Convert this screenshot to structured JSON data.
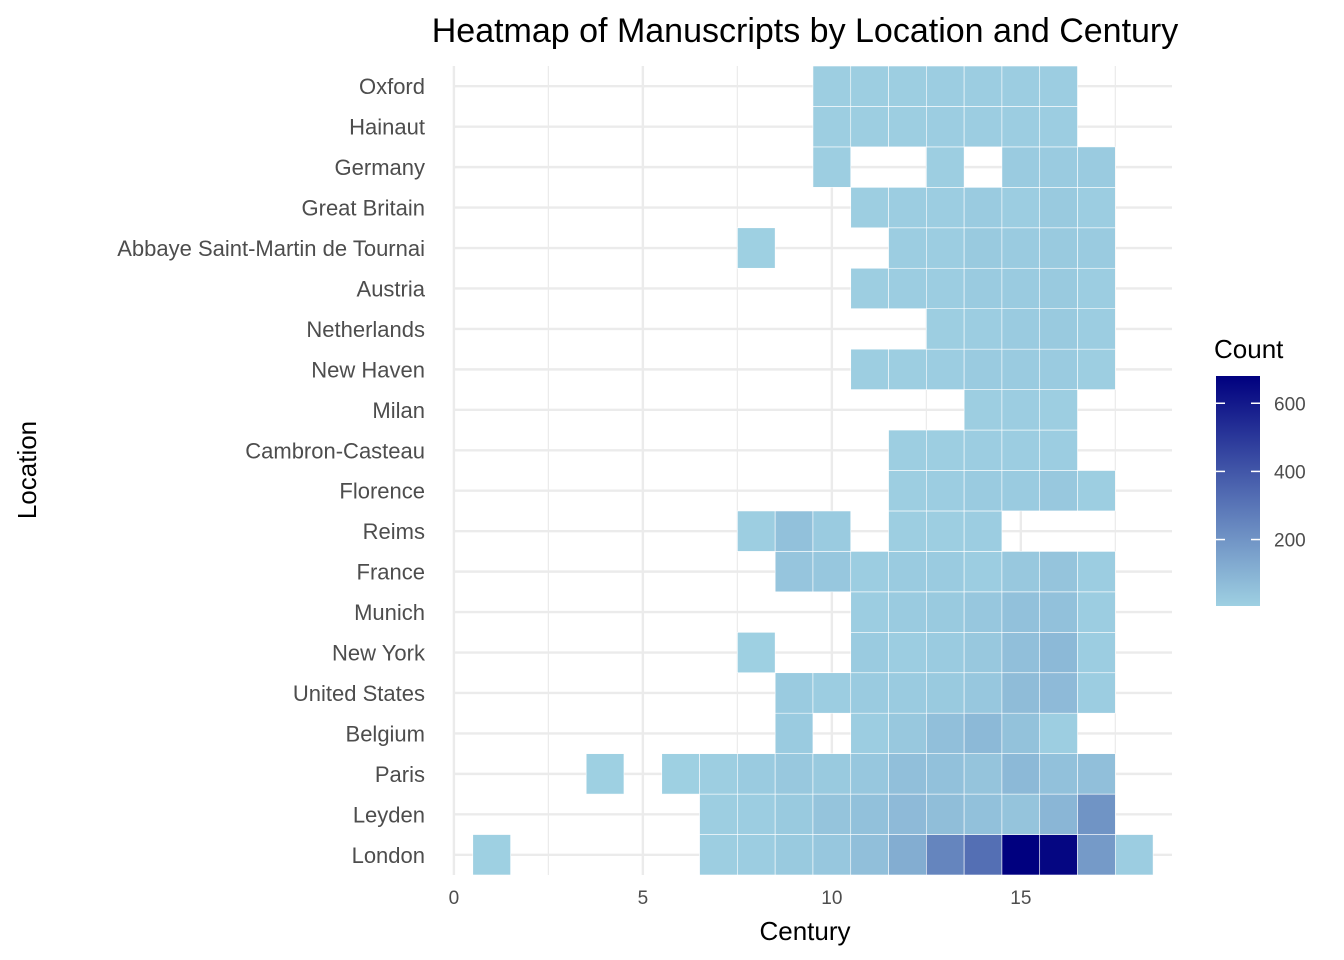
{
  "chart_data": {
    "type": "heatmap",
    "title": "Heatmap of Manuscripts by Location and Century",
    "xlabel": "Century",
    "ylabel": "Location",
    "xlim": [
      -0.5,
      19
    ],
    "x_ticks": [
      0,
      5,
      10,
      15
    ],
    "locations": [
      "London",
      "Leyden",
      "Paris",
      "Belgium",
      "United States",
      "New York",
      "Munich",
      "France",
      "Reims",
      "Florence",
      "Cambron-Casteau",
      "Milan",
      "New Haven",
      "Netherlands",
      "Austria",
      "Abbaye Saint-Martin de Tournai",
      "Great Britain",
      "Germany",
      "Hainaut",
      "Oxford"
    ],
    "cells": [
      {
        "location": "London",
        "century": 1,
        "count": 5
      },
      {
        "location": "London",
        "century": 7,
        "count": 10
      },
      {
        "location": "London",
        "century": 8,
        "count": 15
      },
      {
        "location": "London",
        "century": 9,
        "count": 25
      },
      {
        "location": "London",
        "century": 10,
        "count": 35
      },
      {
        "location": "London",
        "century": 11,
        "count": 60
      },
      {
        "location": "London",
        "century": 12,
        "count": 120
      },
      {
        "location": "London",
        "century": 13,
        "count": 250
      },
      {
        "location": "London",
        "century": 14,
        "count": 320
      },
      {
        "location": "London",
        "century": 15,
        "count": 680
      },
      {
        "location": "London",
        "century": 16,
        "count": 660
      },
      {
        "location": "London",
        "century": 17,
        "count": 180
      },
      {
        "location": "London",
        "century": 18,
        "count": 15
      },
      {
        "location": "Leyden",
        "century": 7,
        "count": 10
      },
      {
        "location": "Leyden",
        "century": 8,
        "count": 15
      },
      {
        "location": "Leyden",
        "century": 9,
        "count": 25
      },
      {
        "location": "Leyden",
        "century": 10,
        "count": 45
      },
      {
        "location": "Leyden",
        "century": 11,
        "count": 55
      },
      {
        "location": "Leyden",
        "century": 12,
        "count": 75
      },
      {
        "location": "Leyden",
        "century": 13,
        "count": 65
      },
      {
        "location": "Leyden",
        "century": 14,
        "count": 55
      },
      {
        "location": "Leyden",
        "century": 15,
        "count": 45
      },
      {
        "location": "Leyden",
        "century": 16,
        "count": 90
      },
      {
        "location": "Leyden",
        "century": 17,
        "count": 200
      },
      {
        "location": "Paris",
        "century": 4,
        "count": 5
      },
      {
        "location": "Paris",
        "century": 6,
        "count": 5
      },
      {
        "location": "Paris",
        "century": 7,
        "count": 10
      },
      {
        "location": "Paris",
        "century": 8,
        "count": 20
      },
      {
        "location": "Paris",
        "century": 9,
        "count": 30
      },
      {
        "location": "Paris",
        "century": 10,
        "count": 25
      },
      {
        "location": "Paris",
        "century": 11,
        "count": 35
      },
      {
        "location": "Paris",
        "century": 12,
        "count": 60
      },
      {
        "location": "Paris",
        "century": 13,
        "count": 55
      },
      {
        "location": "Paris",
        "century": 14,
        "count": 45
      },
      {
        "location": "Paris",
        "century": 15,
        "count": 80
      },
      {
        "location": "Paris",
        "century": 16,
        "count": 55
      },
      {
        "location": "Paris",
        "century": 17,
        "count": 60
      },
      {
        "location": "Belgium",
        "century": 9,
        "count": 20
      },
      {
        "location": "Belgium",
        "century": 11,
        "count": 15
      },
      {
        "location": "Belgium",
        "century": 12,
        "count": 30
      },
      {
        "location": "Belgium",
        "century": 13,
        "count": 60
      },
      {
        "location": "Belgium",
        "century": 14,
        "count": 80
      },
      {
        "location": "Belgium",
        "century": 15,
        "count": 50
      },
      {
        "location": "Belgium",
        "century": 16,
        "count": 10
      },
      {
        "location": "United States",
        "century": 9,
        "count": 20
      },
      {
        "location": "United States",
        "century": 10,
        "count": 15
      },
      {
        "location": "United States",
        "century": 11,
        "count": 20
      },
      {
        "location": "United States",
        "century": 12,
        "count": 20
      },
      {
        "location": "United States",
        "century": 13,
        "count": 25
      },
      {
        "location": "United States",
        "century": 14,
        "count": 35
      },
      {
        "location": "United States",
        "century": 15,
        "count": 70
      },
      {
        "location": "United States",
        "century": 16,
        "count": 75
      },
      {
        "location": "United States",
        "century": 17,
        "count": 15
      },
      {
        "location": "New York",
        "century": 8,
        "count": 5
      },
      {
        "location": "New York",
        "century": 11,
        "count": 20
      },
      {
        "location": "New York",
        "century": 12,
        "count": 15
      },
      {
        "location": "New York",
        "century": 13,
        "count": 20
      },
      {
        "location": "New York",
        "century": 14,
        "count": 30
      },
      {
        "location": "New York",
        "century": 15,
        "count": 60
      },
      {
        "location": "New York",
        "century": 16,
        "count": 80
      },
      {
        "location": "New York",
        "century": 17,
        "count": 15
      },
      {
        "location": "Munich",
        "century": 11,
        "count": 15
      },
      {
        "location": "Munich",
        "century": 12,
        "count": 20
      },
      {
        "location": "Munich",
        "century": 13,
        "count": 25
      },
      {
        "location": "Munich",
        "century": 14,
        "count": 35
      },
      {
        "location": "Munich",
        "century": 15,
        "count": 55
      },
      {
        "location": "Munich",
        "century": 16,
        "count": 55
      },
      {
        "location": "Munich",
        "century": 17,
        "count": 15
      },
      {
        "location": "France",
        "century": 9,
        "count": 40
      },
      {
        "location": "France",
        "century": 10,
        "count": 35
      },
      {
        "location": "France",
        "century": 11,
        "count": 15
      },
      {
        "location": "France",
        "century": 12,
        "count": 20
      },
      {
        "location": "France",
        "century": 13,
        "count": 20
      },
      {
        "location": "France",
        "century": 14,
        "count": 15
      },
      {
        "location": "France",
        "century": 15,
        "count": 30
      },
      {
        "location": "France",
        "century": 16,
        "count": 45
      },
      {
        "location": "France",
        "century": 17,
        "count": 15
      },
      {
        "location": "Reims",
        "century": 8,
        "count": 10
      },
      {
        "location": "Reims",
        "century": 9,
        "count": 55
      },
      {
        "location": "Reims",
        "century": 10,
        "count": 20
      },
      {
        "location": "Reims",
        "century": 12,
        "count": 10
      },
      {
        "location": "Reims",
        "century": 13,
        "count": 10
      },
      {
        "location": "Reims",
        "century": 14,
        "count": 15
      },
      {
        "location": "Florence",
        "century": 12,
        "count": 10
      },
      {
        "location": "Florence",
        "century": 13,
        "count": 15
      },
      {
        "location": "Florence",
        "century": 14,
        "count": 20
      },
      {
        "location": "Florence",
        "century": 15,
        "count": 20
      },
      {
        "location": "Florence",
        "century": 16,
        "count": 30
      },
      {
        "location": "Florence",
        "century": 17,
        "count": 10
      },
      {
        "location": "Cambron-Casteau",
        "century": 12,
        "count": 10
      },
      {
        "location": "Cambron-Casteau",
        "century": 13,
        "count": 10
      },
      {
        "location": "Cambron-Casteau",
        "century": 14,
        "count": 15
      },
      {
        "location": "Cambron-Casteau",
        "century": 15,
        "count": 15
      },
      {
        "location": "Cambron-Casteau",
        "century": 16,
        "count": 15
      },
      {
        "location": "Milan",
        "century": 14,
        "count": 10
      },
      {
        "location": "Milan",
        "century": 15,
        "count": 15
      },
      {
        "location": "Milan",
        "century": 16,
        "count": 10
      },
      {
        "location": "New Haven",
        "century": 11,
        "count": 10
      },
      {
        "location": "New Haven",
        "century": 12,
        "count": 10
      },
      {
        "location": "New Haven",
        "century": 13,
        "count": 15
      },
      {
        "location": "New Haven",
        "century": 14,
        "count": 20
      },
      {
        "location": "New Haven",
        "century": 15,
        "count": 20
      },
      {
        "location": "New Haven",
        "century": 16,
        "count": 20
      },
      {
        "location": "New Haven",
        "century": 17,
        "count": 10
      },
      {
        "location": "Netherlands",
        "century": 13,
        "count": 10
      },
      {
        "location": "Netherlands",
        "century": 14,
        "count": 15
      },
      {
        "location": "Netherlands",
        "century": 15,
        "count": 20
      },
      {
        "location": "Netherlands",
        "century": 16,
        "count": 25
      },
      {
        "location": "Netherlands",
        "century": 17,
        "count": 15
      },
      {
        "location": "Austria",
        "century": 11,
        "count": 10
      },
      {
        "location": "Austria",
        "century": 12,
        "count": 15
      },
      {
        "location": "Austria",
        "century": 13,
        "count": 15
      },
      {
        "location": "Austria",
        "century": 14,
        "count": 20
      },
      {
        "location": "Austria",
        "century": 15,
        "count": 20
      },
      {
        "location": "Austria",
        "century": 16,
        "count": 25
      },
      {
        "location": "Austria",
        "century": 17,
        "count": 15
      },
      {
        "location": "Abbaye Saint-Martin de Tournai",
        "century": 8,
        "count": 5
      },
      {
        "location": "Abbaye Saint-Martin de Tournai",
        "century": 12,
        "count": 15
      },
      {
        "location": "Abbaye Saint-Martin de Tournai",
        "century": 13,
        "count": 15
      },
      {
        "location": "Abbaye Saint-Martin de Tournai",
        "century": 14,
        "count": 25
      },
      {
        "location": "Abbaye Saint-Martin de Tournai",
        "century": 15,
        "count": 20
      },
      {
        "location": "Abbaye Saint-Martin de Tournai",
        "century": 16,
        "count": 25
      },
      {
        "location": "Abbaye Saint-Martin de Tournai",
        "century": 17,
        "count": 20
      },
      {
        "location": "Great Britain",
        "century": 11,
        "count": 10
      },
      {
        "location": "Great Britain",
        "century": 12,
        "count": 15
      },
      {
        "location": "Great Britain",
        "century": 13,
        "count": 15
      },
      {
        "location": "Great Britain",
        "century": 14,
        "count": 20
      },
      {
        "location": "Great Britain",
        "century": 15,
        "count": 15
      },
      {
        "location": "Great Britain",
        "century": 16,
        "count": 25
      },
      {
        "location": "Great Britain",
        "century": 17,
        "count": 15
      },
      {
        "location": "Germany",
        "century": 10,
        "count": 10
      },
      {
        "location": "Germany",
        "century": 13,
        "count": 10
      },
      {
        "location": "Germany",
        "century": 15,
        "count": 20
      },
      {
        "location": "Germany",
        "century": 16,
        "count": 20
      },
      {
        "location": "Germany",
        "century": 17,
        "count": 20
      },
      {
        "location": "Hainaut",
        "century": 10,
        "count": 10
      },
      {
        "location": "Hainaut",
        "century": 11,
        "count": 10
      },
      {
        "location": "Hainaut",
        "century": 12,
        "count": 10
      },
      {
        "location": "Hainaut",
        "century": 13,
        "count": 15
      },
      {
        "location": "Hainaut",
        "century": 14,
        "count": 15
      },
      {
        "location": "Hainaut",
        "century": 15,
        "count": 15
      },
      {
        "location": "Hainaut",
        "century": 16,
        "count": 15
      },
      {
        "location": "Oxford",
        "century": 10,
        "count": 10
      },
      {
        "location": "Oxford",
        "century": 11,
        "count": 10
      },
      {
        "location": "Oxford",
        "century": 12,
        "count": 10
      },
      {
        "location": "Oxford",
        "century": 13,
        "count": 15
      },
      {
        "location": "Oxford",
        "century": 14,
        "count": 15
      },
      {
        "location": "Oxford",
        "century": 15,
        "count": 15
      },
      {
        "location": "Oxford",
        "century": 16,
        "count": 15
      }
    ],
    "legend": {
      "title": "Count",
      "min": 5,
      "max": 680,
      "ticks": [
        200,
        400,
        600
      ],
      "low_color": "#9ED0E2",
      "high_color": "#00007F"
    }
  }
}
